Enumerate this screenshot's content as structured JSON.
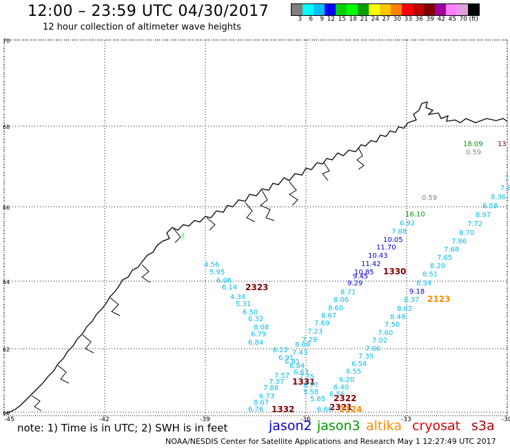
{
  "header": {
    "title": "12:00 – 23:59 UTC 04/30/2017",
    "subtitle": "12 hour collection of altimeter wave heights"
  },
  "colorbar": {
    "colors": [
      "#7f7f7f",
      "#00ffff",
      "#00bfff",
      "#0000ff",
      "#00d000",
      "#00ff00",
      "#00a000",
      "#ffff00",
      "#ffc800",
      "#ff8000",
      "#ff0000",
      "#c00000",
      "#800000",
      "#a000a0",
      "#ff80ff",
      "#e0a0e0",
      "#000000"
    ],
    "labels": [
      "3",
      "6",
      "9",
      "12",
      "15",
      "18",
      "21",
      "24",
      "27",
      "30",
      "33",
      "36",
      "39",
      "42",
      "45",
      "70",
      "(ft)"
    ]
  },
  "axes": {
    "lon_labels": [
      "-45",
      "-42",
      "-39",
      "-36",
      "-33",
      "-30"
    ],
    "lat_labels": [
      "70",
      "68",
      "66",
      "64",
      "62",
      "60"
    ]
  },
  "legend": {
    "jason2": {
      "label": "jason2",
      "color": "#0000cc"
    },
    "jason3": {
      "label": "jason3",
      "color": "#009900"
    },
    "altika": {
      "label": "altika",
      "color": "#ff8c00"
    },
    "cryosat": {
      "label": "cryosat",
      "color": "#dd0000"
    },
    "s3a": {
      "label": "s3a",
      "color": "#aa0000"
    }
  },
  "footer": {
    "note": "note: 1) Time is in UTC; 2) SWH is in feet",
    "credit": "NOAA/NESDIS Center for Satellite Applications and Research   May  1 12:27:49 UTC 2017"
  },
  "labels": [
    {
      "t": "18.09",
      "c": "#009900"
    },
    {
      "t": "13",
      "c": "#800000"
    },
    {
      "t": "0.59",
      "c": "#808080"
    },
    {
      "t": "0.59",
      "c": "#808080"
    },
    {
      "t": "7",
      "c": "#00bbee"
    },
    {
      "t": "7.8",
      "c": "#00bbee"
    },
    {
      "t": "8.36",
      "c": "#00bbee"
    },
    {
      "t": "8.58",
      "c": "#00bbee"
    },
    {
      "t": "8.97",
      "c": "#00bbee"
    },
    {
      "t": "7.72",
      "c": "#00bbee"
    },
    {
      "t": "8.70",
      "c": "#00bbee"
    },
    {
      "t": "7.86",
      "c": "#00bbee"
    },
    {
      "t": "7.68",
      "c": "#00bbee"
    },
    {
      "t": "7.65",
      "c": "#00bbee"
    },
    {
      "t": "8.20",
      "c": "#00bbee"
    },
    {
      "t": "8.51",
      "c": "#00bbee"
    },
    {
      "t": "8.34",
      "c": "#00bbee"
    },
    {
      "t": "9.18",
      "c": "#0000cc"
    },
    {
      "t": "8.37",
      "c": "#00bbee"
    },
    {
      "t": "2123",
      "c": "#ff8c00"
    },
    {
      "t": "16.10",
      "c": "#009900"
    },
    {
      "t": "6.92",
      "c": "#00bbee"
    },
    {
      "t": "7.88",
      "c": "#00bbee"
    },
    {
      "t": "10.05",
      "c": "#0000cc"
    },
    {
      "t": "11.70",
      "c": "#0000cc"
    },
    {
      "t": "10.43",
      "c": "#0000cc"
    },
    {
      "t": "11.42",
      "c": "#0000cc"
    },
    {
      "t": "10.85",
      "c": "#0000cc"
    },
    {
      "t": "9.45",
      "c": "#0000cc"
    },
    {
      "t": "1330",
      "c": "#800000"
    },
    {
      "t": "9.29",
      "c": "#0000cc"
    },
    {
      "t": "8.71",
      "c": "#00bbee"
    },
    {
      "t": "8.06",
      "c": "#00bbee"
    },
    {
      "t": "8.60",
      "c": "#00bbee"
    },
    {
      "t": "8.67",
      "c": "#00bbee"
    },
    {
      "t": "7.69",
      "c": "#00bbee"
    },
    {
      "t": "7.23",
      "c": "#00bbee"
    },
    {
      "t": "7.29",
      "c": "#00bbee"
    },
    {
      "t": "8.04",
      "c": "#00bbee"
    },
    {
      "t": "7.43",
      "c": "#00bbee"
    },
    {
      "t": "8.62",
      "c": "#00bbee"
    },
    {
      "t": "8.49",
      "c": "#00bbee"
    },
    {
      "t": "7.50",
      "c": "#00bbee"
    },
    {
      "t": "7.60",
      "c": "#00bbee"
    },
    {
      "t": "7.02",
      "c": "#00bbee"
    },
    {
      "t": "7.06",
      "c": "#00bbee"
    },
    {
      "t": "7.35",
      "c": "#00bbee"
    },
    {
      "t": "6.54",
      "c": "#00bbee"
    },
    {
      "t": "6.55",
      "c": "#00bbee"
    },
    {
      "t": "6.20",
      "c": "#00bbee"
    },
    {
      "t": "6.40",
      "c": "#00bbee"
    },
    {
      "t": "6.56",
      "c": "#00bbee"
    },
    {
      "t": "2322",
      "c": "#800000"
    },
    {
      "t": "2321",
      "c": "#800000"
    },
    {
      "t": "2124",
      "c": "#ff8c00"
    },
    {
      "t": "6.66",
      "c": "#00bbee"
    },
    {
      "t": "5.85",
      "c": "#00bbee"
    },
    {
      "t": "5.58",
      "c": "#00bbee"
    },
    {
      "t": "1331",
      "c": "#800000"
    },
    {
      "t": "6.77",
      "c": "#00bbee"
    },
    {
      "t": "7.75",
      "c": "#00bbee"
    },
    {
      "t": "6.63",
      "c": "#00bbee"
    },
    {
      "t": "6.84",
      "c": "#00bbee"
    },
    {
      "t": "6.81",
      "c": "#00bbee"
    },
    {
      "t": "6.91",
      "c": "#00bbee"
    },
    {
      "t": "6.22",
      "c": "#00bbee"
    },
    {
      "t": "7.57",
      "c": "#00bbee"
    },
    {
      "t": "7.37",
      "c": "#00bbee"
    },
    {
      "t": "7.88",
      "c": "#00bbee"
    },
    {
      "t": "6.73",
      "c": "#00bbee"
    },
    {
      "t": "8.67",
      "c": "#00bbee"
    },
    {
      "t": "6.76",
      "c": "#00bbee"
    },
    {
      "t": "1332",
      "c": "#800000"
    },
    {
      "t": "6.84",
      "c": "#00bbee"
    },
    {
      "t": "6.79",
      "c": "#00bbee"
    },
    {
      "t": "8.08",
      "c": "#00bbee"
    },
    {
      "t": "6.32",
      "c": "#00bbee"
    },
    {
      "t": "6.50",
      "c": "#00bbee"
    },
    {
      "t": "5.31",
      "c": "#00bbee"
    },
    {
      "t": "4.34",
      "c": "#00bbee"
    },
    {
      "t": "6.14",
      "c": "#00bbee"
    },
    {
      "t": "2323",
      "c": "#800000"
    },
    {
      "t": "6.06",
      "c": "#00bbee"
    },
    {
      "t": "5.95",
      "c": "#00bbee"
    },
    {
      "t": "4.56",
      "c": "#00bbee"
    },
    {
      "t": "7",
      "c": "#00ff00"
    }
  ]
}
